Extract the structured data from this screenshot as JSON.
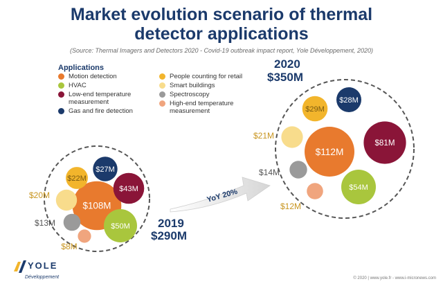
{
  "header": {
    "title_line1": "Market evolution scenario of thermal",
    "title_line2": "detector applications",
    "subtitle": "(Source: Thermal Imagers and Detectors 2020 - Covid-19 outbreak impact report, Yole Développement, 2020)"
  },
  "legend": {
    "heading": "Applications",
    "items": [
      {
        "label": "Motion detection",
        "color": "#e87a2e"
      },
      {
        "label": "HVAC",
        "color": "#a9c63d"
      },
      {
        "label": "Low-end temperature\nmeasurement",
        "color": "#8a1538"
      },
      {
        "label": "Gas and fire detection",
        "color": "#1b3a6b"
      },
      {
        "label": "People counting for retail",
        "color": "#f2b52c"
      },
      {
        "label": "Smart buildings",
        "color": "#f8dc8c"
      },
      {
        "label": "Spectroscopy",
        "color": "#9a9a9a"
      },
      {
        "label": "High-end temperature\nmeasurement",
        "color": "#f0a57e"
      }
    ]
  },
  "chart_data": [
    {
      "type": "bubble",
      "title": "2019",
      "total": "$290M",
      "values": [
        {
          "category": "Motion detection",
          "value": 108,
          "label": "$108M",
          "color": "#e87a2e"
        },
        {
          "category": "HVAC",
          "value": 50,
          "label": "$50M",
          "color": "#a9c63d"
        },
        {
          "category": "Low-end temperature measurement",
          "value": 43,
          "label": "$43M",
          "color": "#8a1538"
        },
        {
          "category": "Gas and fire detection",
          "value": 27,
          "label": "$27M",
          "color": "#1b3a6b"
        },
        {
          "category": "People counting for retail",
          "value": 22,
          "label": "$22M",
          "color": "#f2b52c"
        },
        {
          "category": "Smart buildings",
          "value": 20,
          "label": "$20M",
          "color": "#f8dc8c"
        },
        {
          "category": "Spectroscopy",
          "value": 13,
          "label": "$13M",
          "color": "#9a9a9a"
        },
        {
          "category": "High-end temperature measurement",
          "value": 8,
          "label": "$8M",
          "color": "#f0a57e"
        }
      ]
    },
    {
      "type": "bubble",
      "title": "2020",
      "total": "$350M",
      "values": [
        {
          "category": "Motion detection",
          "value": 112,
          "label": "$112M",
          "color": "#e87a2e"
        },
        {
          "category": "HVAC",
          "value": 54,
          "label": "$54M",
          "color": "#a9c63d"
        },
        {
          "category": "Low-end temperature measurement",
          "value": 81,
          "label": "$81M",
          "color": "#8a1538"
        },
        {
          "category": "Gas and fire detection",
          "value": 28,
          "label": "$28M",
          "color": "#1b3a6b"
        },
        {
          "category": "People counting for retail",
          "value": 29,
          "label": "$29M",
          "color": "#f2b52c"
        },
        {
          "category": "Smart buildings",
          "value": 21,
          "label": "$21M",
          "color": "#f8dc8c"
        },
        {
          "category": "Spectroscopy",
          "value": 14,
          "label": "$14M",
          "color": "#9a9a9a"
        },
        {
          "category": "High-end temperature measurement",
          "value": 12,
          "label": "$12M",
          "color": "#f0a57e"
        }
      ]
    }
  ],
  "annotation": {
    "yoy": "YoY 20%"
  },
  "logo": {
    "name": "YOLE",
    "sub": "Développement"
  },
  "footer": {
    "text": "© 2020 | www.yole.fr - www.i-micronews.com"
  },
  "colors": {
    "title": "#1b3a6b",
    "label_gold": "#c8951f",
    "label_gray": "#555555"
  }
}
